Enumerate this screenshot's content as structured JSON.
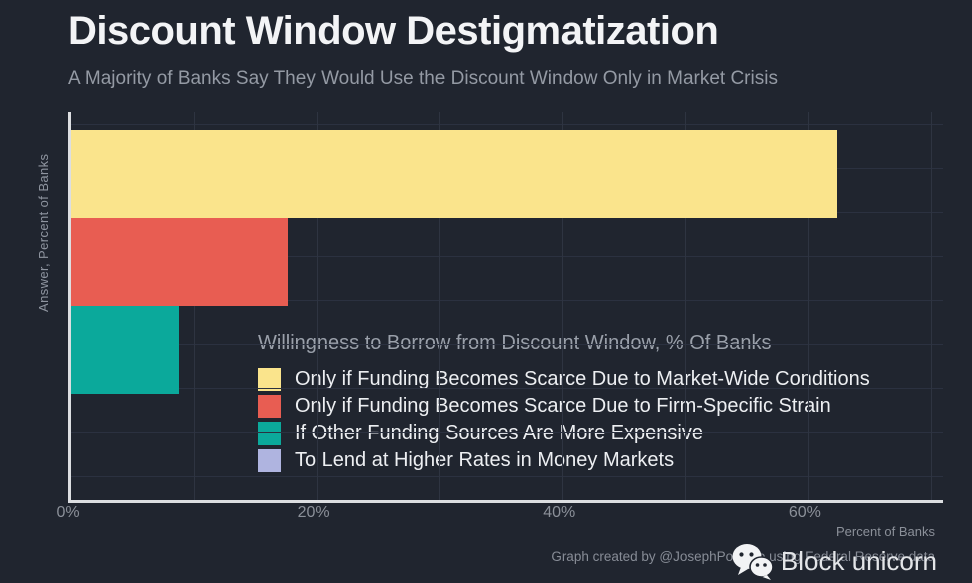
{
  "header": {
    "title": "Discount Window Destigmatization",
    "subtitle": "A Majority of Banks Say They Would Use the Discount Window Only in Market Crisis"
  },
  "chart_data": {
    "type": "bar",
    "orientation": "horizontal",
    "title": "Willingness to Borrow from Discount Window, % Of Banks",
    "categories": [
      "Only if Funding Becomes Scarce Due to Market-Wide Conditions",
      "Only if Funding Becomes Scarce Due to Firm-Specific Strain",
      "If Other Funding Sources Are More Expensive",
      "To Lend at Higher Rates in Money Markets"
    ],
    "values": [
      62.4,
      17.7,
      8.8,
      0
    ],
    "colors": [
      "#fae48c",
      "#e85d52",
      "#0ba99b",
      "#afb4e0"
    ],
    "xlabel": "Percent of Banks",
    "ylabel": "Answer, Percent of Banks",
    "xlim": [
      0,
      71
    ],
    "xticks": [
      0,
      20,
      40,
      60
    ],
    "xtick_labels": [
      "0%",
      "20%",
      "40%",
      "60%"
    ],
    "grid": "on",
    "grid_step_pct": 10,
    "legend_position": "inside-center-right"
  },
  "footer": {
    "credit": "Graph created by @JosephPolitano using Federal Reserve data",
    "brand": "Block unicorn",
    "brand_icon": "wechat-icon"
  },
  "theme": {
    "background": "#20252f",
    "title_text": "#f3f4f6",
    "muted_text": "#8f95a0",
    "legend_text": "#edeff2",
    "grid": "#2e3441",
    "axis": "#dcdee1"
  }
}
